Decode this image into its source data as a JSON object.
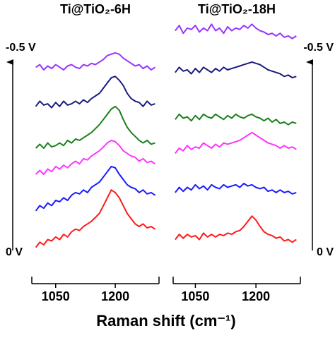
{
  "chart_data": [
    {
      "type": "line",
      "title": "Ti@TiO₂-6H",
      "xlabel": "Raman shift (cm⁻¹)",
      "annotations": [
        "-0.5 V",
        "0 V"
      ],
      "x": [
        1000,
        1010,
        1020,
        1030,
        1040,
        1050,
        1060,
        1070,
        1080,
        1090,
        1100,
        1110,
        1120,
        1130,
        1140,
        1150,
        1160,
        1170,
        1180,
        1190,
        1200,
        1210,
        1220,
        1230,
        1240,
        1250,
        1260,
        1270,
        1280,
        1290,
        1300
      ],
      "xlim": [
        990,
        1310
      ],
      "xticks": [
        1050,
        1200
      ],
      "ylim": [
        0,
        100
      ],
      "series": [
        {
          "color": "#9933ff",
          "values": [
            81,
            82,
            80,
            81.5,
            80.5,
            82,
            81,
            80,
            81.5,
            82,
            81,
            80.5,
            82,
            81.5,
            82.5,
            82,
            83,
            84,
            85.5,
            86,
            86.5,
            86,
            84.5,
            83.5,
            82.5,
            81.5,
            82,
            80.5,
            81.5,
            80,
            81
          ]
        },
        {
          "color": "#1a1a80",
          "values": [
            66,
            68,
            66.5,
            67,
            65.5,
            67.5,
            66,
            68,
            66.5,
            67,
            68,
            67,
            68.5,
            67.5,
            69,
            70,
            71,
            73,
            75,
            77,
            77.5,
            76,
            74,
            71,
            69,
            68,
            67.5,
            66,
            68,
            66.5,
            67
          ]
        },
        {
          "color": "#1a801a",
          "values": [
            50,
            51.5,
            50,
            52,
            50.5,
            51,
            52,
            51,
            53,
            52,
            53.5,
            53,
            54,
            55,
            56,
            57.5,
            59,
            61,
            63,
            65,
            66,
            64.5,
            61,
            58,
            56,
            54.5,
            53,
            52,
            53,
            51.5,
            52
          ]
        },
        {
          "color": "#ff33ff",
          "values": [
            40,
            41.5,
            40,
            42,
            41,
            43,
            42,
            43.5,
            42.5,
            44,
            45,
            44,
            46,
            45.5,
            47,
            48,
            49,
            50.5,
            52,
            53,
            52.5,
            51,
            49,
            48,
            47,
            46.5,
            45,
            46,
            44.5,
            45,
            44
          ]
        },
        {
          "color": "#1a1aff",
          "values": [
            26,
            28,
            27,
            29,
            28,
            30,
            29.5,
            31,
            30,
            32,
            33,
            32.5,
            34,
            33,
            35,
            36,
            37,
            39,
            41,
            43,
            42.5,
            40,
            38,
            36,
            35,
            34.5,
            33,
            34,
            32.5,
            33,
            32
          ]
        },
        {
          "color": "#ff1a1a",
          "values": [
            12,
            14,
            13,
            15,
            14.5,
            16,
            15,
            17,
            16,
            18,
            19,
            18.5,
            20,
            21,
            22,
            23.5,
            25,
            28,
            31,
            34,
            33,
            31,
            28,
            25,
            23,
            21,
            20,
            21,
            19.5,
            20,
            19
          ]
        }
      ]
    },
    {
      "type": "line",
      "title": "Ti@TiO₂-18H",
      "annotations": [
        "-0.5 V",
        "0 V"
      ],
      "x": [
        1000,
        1010,
        1020,
        1030,
        1040,
        1050,
        1060,
        1070,
        1080,
        1090,
        1100,
        1110,
        1120,
        1130,
        1140,
        1150,
        1160,
        1170,
        1180,
        1190,
        1200,
        1210,
        1220,
        1230,
        1240,
        1250,
        1260,
        1270,
        1280,
        1290,
        1300
      ],
      "xlim": [
        995,
        1310
      ],
      "xticks": [
        1050,
        1200
      ],
      "ylim": [
        0,
        100
      ],
      "series": [
        {
          "color": "#9933ff",
          "values": [
            95,
            97,
            94,
            96,
            95.5,
            97,
            94.5,
            96,
            95,
            97.5,
            95,
            96,
            94,
            96.5,
            95,
            96,
            95.5,
            97,
            96,
            97.5,
            96,
            95,
            94.5,
            93.5,
            94,
            93,
            94,
            92.5,
            93,
            92,
            93
          ]
        },
        {
          "color": "#1a1a80",
          "values": [
            79,
            81,
            79.5,
            80,
            78.5,
            80.5,
            79,
            81,
            80,
            79,
            80.5,
            79.5,
            81,
            80,
            80.5,
            81,
            81.5,
            82,
            82.5,
            83,
            82.5,
            82,
            81,
            80,
            79.5,
            79,
            78.5,
            77.5,
            78,
            77,
            77.5
          ]
        },
        {
          "color": "#1a801a",
          "values": [
            61,
            63,
            61.5,
            62,
            60.5,
            62.5,
            61,
            63,
            62,
            61.5,
            63,
            62,
            61,
            62.5,
            61.5,
            63,
            62,
            61.5,
            62.5,
            63,
            62,
            61.5,
            60.5,
            61.5,
            60,
            61,
            59.5,
            60,
            59,
            60,
            59.5
          ]
        },
        {
          "color": "#ff33ff",
          "values": [
            48,
            50,
            49,
            51,
            49.5,
            50.5,
            50,
            52,
            51,
            50,
            51.5,
            50.5,
            52,
            51.5,
            52,
            52.5,
            53,
            54,
            55,
            56,
            55,
            54,
            53,
            52,
            51.5,
            51,
            50,
            51,
            50,
            50.5,
            49.5
          ]
        },
        {
          "color": "#1a1aff",
          "values": [
            33,
            35,
            33.5,
            35,
            34,
            36,
            34.5,
            35.5,
            34,
            36,
            35,
            34.5,
            36,
            35,
            35.5,
            36,
            35,
            36.5,
            35.5,
            36,
            35,
            34.5,
            35,
            33.5,
            34,
            33,
            34,
            33,
            33.5,
            32.5,
            33
          ]
        },
        {
          "color": "#ff1a1a",
          "values": [
            15,
            17,
            15.5,
            17,
            16,
            16.5,
            15,
            17.5,
            16,
            17,
            16,
            17,
            16.5,
            17.5,
            17,
            18,
            18.5,
            20,
            22,
            24,
            22.5,
            20,
            18,
            17,
            16.5,
            15.5,
            16,
            14.5,
            15,
            14,
            15
          ]
        }
      ]
    }
  ]
}
